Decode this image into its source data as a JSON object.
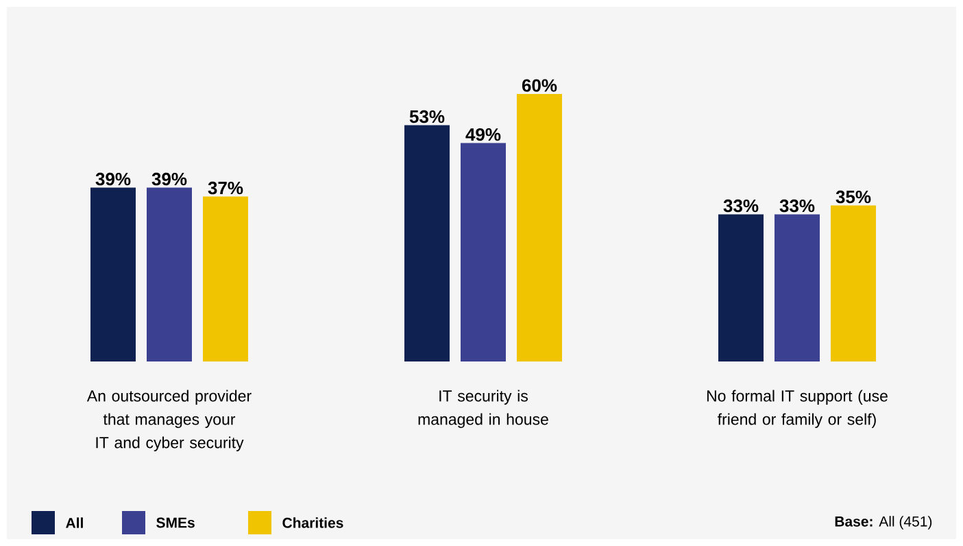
{
  "chart_data": {
    "type": "bar",
    "categories": [
      "An outsourced provider that manages your IT and cyber security",
      "IT security is managed in house",
      "No formal IT support (use friend or family or self)"
    ],
    "series": [
      {
        "name": "All",
        "color": "#0f2150",
        "values": [
          39,
          53,
          33
        ],
        "value_labels": [
          "39%",
          "53%",
          "33%"
        ]
      },
      {
        "name": "SMEs",
        "color": "#3b4190",
        "values": [
          39,
          49,
          33
        ],
        "value_labels": [
          "39%",
          "49%",
          "33%"
        ]
      },
      {
        "name": "Charities",
        "color": "#f0c400",
        "values": [
          37,
          60,
          35
        ],
        "value_labels": [
          "37%",
          "60%",
          "35%"
        ]
      }
    ],
    "legend": "bottom left",
    "annotations": [
      "**Base:** All (451)"
    ]
  }
}
